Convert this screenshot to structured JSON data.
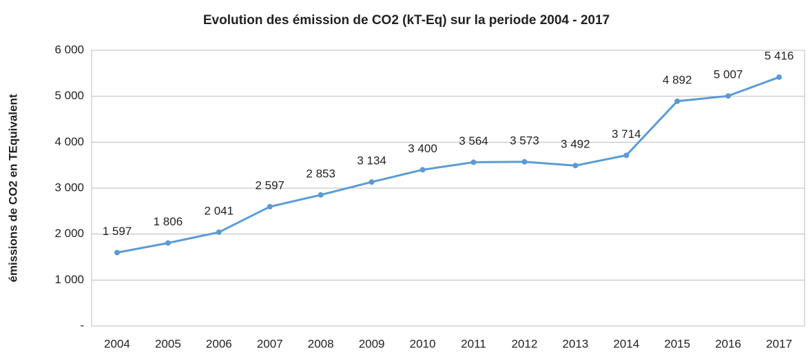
{
  "chart_data": {
    "type": "line",
    "title": "Evolution des émission de CO2 (kT-Eq) sur la periode 2004 - 2017",
    "y_label": "émissions de CO2 en TEquivalent",
    "categories": [
      "2004",
      "2005",
      "2006",
      "2007",
      "2008",
      "2009",
      "2010",
      "2011",
      "2012",
      "2013",
      "2014",
      "2015",
      "2016",
      "2017"
    ],
    "series": [
      {
        "name": "CO2",
        "color": "#5b9bd5",
        "values": [
          1597,
          1806,
          2041,
          2597,
          2853,
          3134,
          3400,
          3564,
          3573,
          3492,
          3714,
          4892,
          5007,
          5416
        ],
        "value_labels": [
          "1 597",
          "1 806",
          "2 041",
          "2 597",
          "2 853",
          "3 134",
          "3 400",
          "3 564",
          "3 573",
          "3 492",
          "3 714",
          "4 892",
          "5 007",
          "5 416"
        ]
      }
    ],
    "ylim": [
      0,
      6000
    ],
    "yticks": [
      {
        "value": 0,
        "label": "-"
      },
      {
        "value": 1000,
        "label": "1 000"
      },
      {
        "value": 2000,
        "label": "2 000"
      },
      {
        "value": 3000,
        "label": "3 000"
      },
      {
        "value": 4000,
        "label": "4 000"
      },
      {
        "value": 5000,
        "label": "5 000"
      },
      {
        "value": 6000,
        "label": "6 000"
      }
    ],
    "grid": true
  }
}
